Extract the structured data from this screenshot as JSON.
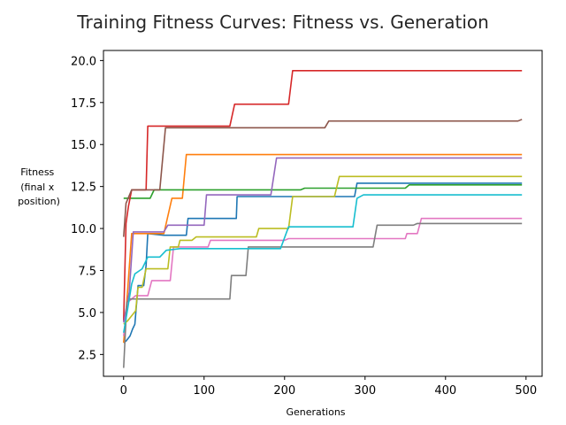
{
  "chart_data": {
    "type": "line",
    "title": "Training Fitness Curves: Fitness vs. Generation",
    "xlabel": "Generations",
    "ylabel_lines": [
      "Fitness",
      "(final x",
      "position)"
    ],
    "xlim": [
      -25,
      520
    ],
    "ylim": [
      1.2,
      20.6
    ],
    "xticks": [
      0,
      100,
      200,
      300,
      400,
      500
    ],
    "yticks": [
      2.5,
      5.0,
      7.5,
      10.0,
      12.5,
      15.0,
      17.5,
      20.0
    ],
    "legend": "none",
    "grid": false,
    "series": [
      {
        "color": "#1f77b4",
        "points": [
          [
            0,
            3.2
          ],
          [
            3,
            3.3
          ],
          [
            8,
            3.6
          ],
          [
            11,
            4.0
          ],
          [
            14,
            4.3
          ],
          [
            18,
            6.6
          ],
          [
            25,
            6.6
          ],
          [
            28,
            7.8
          ],
          [
            30,
            9.7
          ],
          [
            50,
            9.6
          ],
          [
            78,
            9.6
          ],
          [
            80,
            10.6
          ],
          [
            100,
            10.6
          ],
          [
            140,
            10.6
          ],
          [
            141,
            11.9
          ],
          [
            170,
            11.9
          ],
          [
            287,
            11.9
          ],
          [
            290,
            12.7
          ],
          [
            495,
            12.7
          ]
        ]
      },
      {
        "color": "#ff7f0e",
        "points": [
          [
            0,
            3.2
          ],
          [
            5,
            6.3
          ],
          [
            10,
            9.7
          ],
          [
            50,
            9.7
          ],
          [
            60,
            11.8
          ],
          [
            73,
            11.8
          ],
          [
            78,
            14.4
          ],
          [
            495,
            14.4
          ]
        ]
      },
      {
        "color": "#2ca02c",
        "points": [
          [
            0,
            11.8
          ],
          [
            33,
            11.8
          ],
          [
            38,
            12.3
          ],
          [
            220,
            12.3
          ],
          [
            225,
            12.4
          ],
          [
            350,
            12.4
          ],
          [
            355,
            12.6
          ],
          [
            495,
            12.6
          ]
        ]
      },
      {
        "color": "#d62728",
        "points": [
          [
            0,
            4.5
          ],
          [
            3,
            10.3
          ],
          [
            6,
            11.3
          ],
          [
            10,
            12.3
          ],
          [
            28,
            12.3
          ],
          [
            30,
            16.1
          ],
          [
            132,
            16.1
          ],
          [
            138,
            17.4
          ],
          [
            205,
            17.4
          ],
          [
            210,
            19.4
          ],
          [
            495,
            19.4
          ]
        ]
      },
      {
        "color": "#9467bd",
        "points": [
          [
            0,
            4.4
          ],
          [
            7,
            6.2
          ],
          [
            12,
            9.8
          ],
          [
            50,
            9.8
          ],
          [
            55,
            10.2
          ],
          [
            100,
            10.2
          ],
          [
            103,
            12.0
          ],
          [
            183,
            12.0
          ],
          [
            190,
            14.2
          ],
          [
            495,
            14.2
          ]
        ]
      },
      {
        "color": "#8c564b",
        "points": [
          [
            0,
            9.5
          ],
          [
            3,
            11.5
          ],
          [
            10,
            12.3
          ],
          [
            45,
            12.3
          ],
          [
            52,
            16.0
          ],
          [
            250,
            16.0
          ],
          [
            255,
            16.4
          ],
          [
            490,
            16.4
          ],
          [
            495,
            16.5
          ]
        ]
      },
      {
        "color": "#e377c2",
        "points": [
          [
            0,
            3.6
          ],
          [
            5,
            5.6
          ],
          [
            15,
            6.0
          ],
          [
            30,
            6.0
          ],
          [
            35,
            6.9
          ],
          [
            58,
            6.9
          ],
          [
            62,
            8.9
          ],
          [
            105,
            8.9
          ],
          [
            108,
            9.3
          ],
          [
            200,
            9.3
          ],
          [
            205,
            9.4
          ],
          [
            350,
            9.4
          ],
          [
            352,
            9.7
          ],
          [
            365,
            9.7
          ],
          [
            370,
            10.6
          ],
          [
            495,
            10.6
          ]
        ]
      },
      {
        "color": "#7f7f7f",
        "points": [
          [
            0,
            1.7
          ],
          [
            4,
            5.6
          ],
          [
            8,
            5.8
          ],
          [
            132,
            5.8
          ],
          [
            134,
            7.2
          ],
          [
            152,
            7.2
          ],
          [
            155,
            8.9
          ],
          [
            310,
            8.9
          ],
          [
            315,
            10.2
          ],
          [
            360,
            10.2
          ],
          [
            365,
            10.3
          ],
          [
            495,
            10.3
          ]
        ]
      },
      {
        "color": "#bcbd22",
        "points": [
          [
            0,
            4.3
          ],
          [
            5,
            4.5
          ],
          [
            15,
            5.1
          ],
          [
            18,
            6.5
          ],
          [
            23,
            6.5
          ],
          [
            28,
            7.6
          ],
          [
            55,
            7.6
          ],
          [
            58,
            8.9
          ],
          [
            68,
            8.9
          ],
          [
            70,
            9.3
          ],
          [
            85,
            9.3
          ],
          [
            90,
            9.5
          ],
          [
            165,
            9.5
          ],
          [
            168,
            10.0
          ],
          [
            205,
            10.0
          ],
          [
            210,
            11.9
          ],
          [
            262,
            11.9
          ],
          [
            268,
            13.1
          ],
          [
            495,
            13.1
          ]
        ]
      },
      {
        "color": "#17becf",
        "points": [
          [
            0,
            3.8
          ],
          [
            5,
            5.2
          ],
          [
            10,
            6.7
          ],
          [
            14,
            7.3
          ],
          [
            20,
            7.5
          ],
          [
            23,
            7.6
          ],
          [
            30,
            8.3
          ],
          [
            45,
            8.3
          ],
          [
            53,
            8.7
          ],
          [
            70,
            8.8
          ],
          [
            195,
            8.8
          ],
          [
            205,
            10.1
          ],
          [
            285,
            10.1
          ],
          [
            290,
            11.8
          ],
          [
            298,
            12.0
          ],
          [
            495,
            12.0
          ]
        ]
      }
    ]
  }
}
